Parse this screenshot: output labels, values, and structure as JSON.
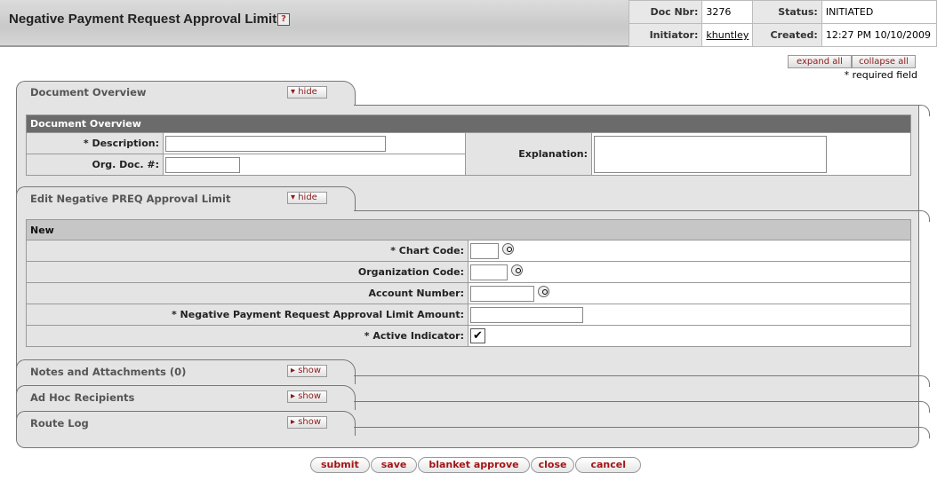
{
  "header": {
    "title": "Negative Payment Request Approval Limit",
    "help_icon": "question-mark-icon",
    "doc_nbr_label": "Doc Nbr:",
    "doc_nbr": "3276",
    "status_label": "Status:",
    "status": "INITIATED",
    "initiator_label": "Initiator:",
    "initiator": "khuntley",
    "created_label": "Created:",
    "created": "12:27 PM 10/10/2009"
  },
  "controls": {
    "expand_all": "expand all",
    "collapse_all": "collapse all",
    "required_note": "* required field"
  },
  "doc_overview": {
    "tab_title": "Document Overview",
    "toggle": "hide",
    "section_header": "Document Overview",
    "description_label": "* Description:",
    "description_value": "",
    "org_doc_label": "Org. Doc. #:",
    "org_doc_value": "",
    "explanation_label": "Explanation:",
    "explanation_value": ""
  },
  "edit": {
    "tab_title": "Edit Negative PREQ Approval Limit",
    "toggle": "hide",
    "section_header": "New",
    "fields": [
      {
        "label": "*  Chart Code:",
        "value": ""
      },
      {
        "label": "Organization Code:",
        "value": ""
      },
      {
        "label": "Account Number:",
        "value": ""
      },
      {
        "label": "*  Negative Payment Request Approval Limit Amount:",
        "value": ""
      },
      {
        "label": "*  Active Indicator:",
        "checked": true
      }
    ]
  },
  "collapsed_tabs": [
    {
      "title": "Notes and Attachments (0)",
      "toggle": "show"
    },
    {
      "title": "Ad Hoc Recipients",
      "toggle": "show"
    },
    {
      "title": "Route Log",
      "toggle": "show"
    }
  ],
  "buttons": {
    "submit": "submit",
    "save": "save",
    "blanket_approve": "blanket approve",
    "close": "close",
    "cancel": "cancel"
  }
}
